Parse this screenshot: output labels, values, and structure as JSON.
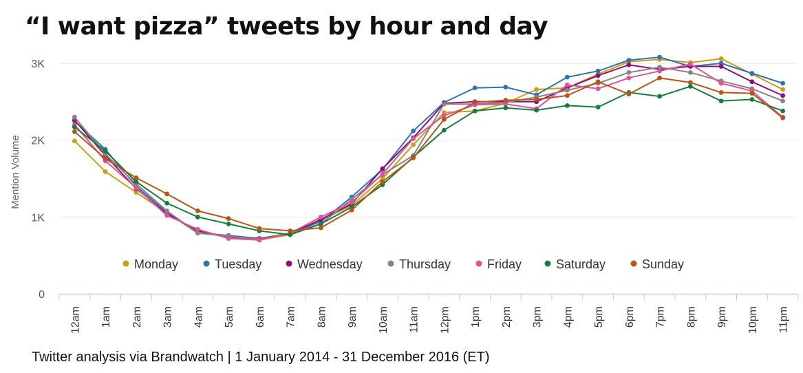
{
  "title": "“I want pizza” tweets by hour and day",
  "caption": "Twitter analysis via Brandwatch | 1 January 2014 - 31 December 2016 (ET)",
  "chart_data": {
    "type": "line",
    "ylabel": "Mention Volume",
    "xlabel": "",
    "ylim": [
      0,
      3000
    ],
    "yticks": [
      0,
      1000,
      2000,
      3000
    ],
    "ytick_labels": [
      "0",
      "1K",
      "2K",
      "3K"
    ],
    "grid": true,
    "legend": "inside-bottom",
    "categories": [
      "12am",
      "1am",
      "2am",
      "3am",
      "4am",
      "5am",
      "6am",
      "7am",
      "8am",
      "9am",
      "10am",
      "11am",
      "12pm",
      "1pm",
      "2pm",
      "3pm",
      "4pm",
      "5pm",
      "6pm",
      "7pm",
      "8pm",
      "9pm",
      "10pm",
      "11pm"
    ],
    "series": [
      {
        "name": "Monday",
        "color": "#c9a013",
        "values": [
          1990,
          1590,
          1320,
          1050,
          800,
          740,
          700,
          770,
          960,
          1150,
          1500,
          1940,
          2360,
          2380,
          2480,
          2660,
          2680,
          2860,
          3020,
          3050,
          3010,
          3060,
          2860,
          2660
        ]
      },
      {
        "name": "Tuesday",
        "color": "#2e74ad",
        "values": [
          2250,
          1880,
          1400,
          1060,
          790,
          760,
          720,
          790,
          940,
          1260,
          1620,
          2120,
          2490,
          2680,
          2690,
          2590,
          2820,
          2900,
          3040,
          3080,
          2960,
          3000,
          2870,
          2740
        ]
      },
      {
        "name": "Wednesday",
        "color": "#8b1179",
        "values": [
          2260,
          1800,
          1370,
          1040,
          820,
          740,
          720,
          780,
          970,
          1170,
          1630,
          2030,
          2480,
          2500,
          2500,
          2500,
          2680,
          2840,
          2980,
          2920,
          2960,
          2960,
          2760,
          2580
        ]
      },
      {
        "name": "Thursday",
        "color": "#8c8280",
        "values": [
          2300,
          1820,
          1430,
          1080,
          790,
          750,
          710,
          790,
          910,
          1230,
          1550,
          1800,
          2470,
          2470,
          2490,
          2560,
          2650,
          2740,
          2880,
          2950,
          2880,
          2770,
          2670,
          2510
        ]
      },
      {
        "name": "Friday",
        "color": "#e0539a",
        "values": [
          2200,
          1730,
          1380,
          1020,
          840,
          720,
          700,
          790,
          1000,
          1190,
          1560,
          2020,
          2320,
          2460,
          2470,
          2410,
          2720,
          2670,
          2810,
          2900,
          2990,
          2740,
          2640,
          2300
        ]
      },
      {
        "name": "Saturday",
        "color": "#137f3c",
        "values": [
          2170,
          1860,
          1460,
          1180,
          1000,
          910,
          820,
          770,
          910,
          1130,
          1420,
          1780,
          2130,
          2380,
          2420,
          2390,
          2450,
          2430,
          2620,
          2570,
          2700,
          2510,
          2530,
          2380
        ]
      },
      {
        "name": "Sunday",
        "color": "#b65518",
        "values": [
          2110,
          1760,
          1510,
          1300,
          1080,
          980,
          850,
          820,
          860,
          1090,
          1460,
          1770,
          2270,
          2490,
          2520,
          2530,
          2580,
          2760,
          2600,
          2810,
          2750,
          2620,
          2610,
          2290
        ]
      }
    ]
  }
}
